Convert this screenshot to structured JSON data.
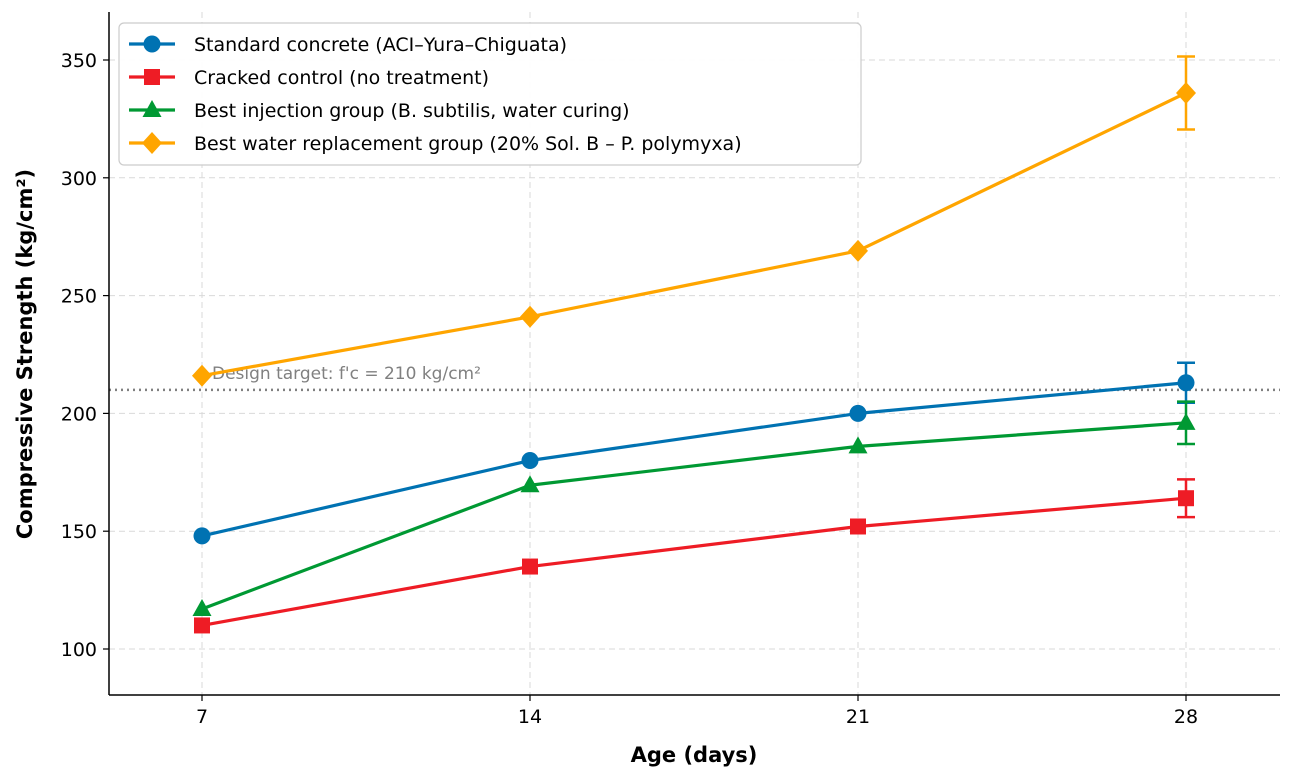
{
  "chart_data": {
    "type": "line",
    "x": [
      7,
      14,
      21,
      28
    ],
    "xlabel": "Age (days)",
    "ylabel": "Compressive Strength (kg/cm²)",
    "xlim": [
      5,
      30
    ],
    "ylim": [
      80,
      370
    ],
    "xticks": [
      7,
      14,
      21,
      28
    ],
    "yticks": [
      100,
      150,
      200,
      250,
      300,
      350
    ],
    "grid": true,
    "legend_position": "top-left",
    "series": [
      {
        "name": "Standard concrete (ACI–Yura–Chiguata)",
        "color": "#0072b2",
        "marker": "circle",
        "values": [
          148,
          180,
          200,
          213
        ],
        "errors": [
          null,
          null,
          null,
          8.5
        ]
      },
      {
        "name": "Cracked control (no treatment)",
        "color": "#ee1c25",
        "marker": "square",
        "values": [
          110,
          135,
          152,
          164
        ],
        "errors": [
          null,
          null,
          null,
          8
        ]
      },
      {
        "name": "Best injection group (B. subtilis, water curing)",
        "color": "#009933",
        "marker": "triangle",
        "values": [
          117,
          169.5,
          186,
          196
        ],
        "errors": [
          null,
          null,
          null,
          9
        ]
      },
      {
        "name": "Best water replacement group (20% Sol. B – P. polymyxa)",
        "color": "#ffa500",
        "marker": "diamond",
        "values": [
          216,
          241,
          269,
          336
        ],
        "errors": [
          null,
          null,
          null,
          15.5
        ]
      }
    ],
    "reference_line": {
      "value": 210,
      "label": "Design target: f'c = 210 kg/cm²",
      "color": "#808080"
    }
  }
}
